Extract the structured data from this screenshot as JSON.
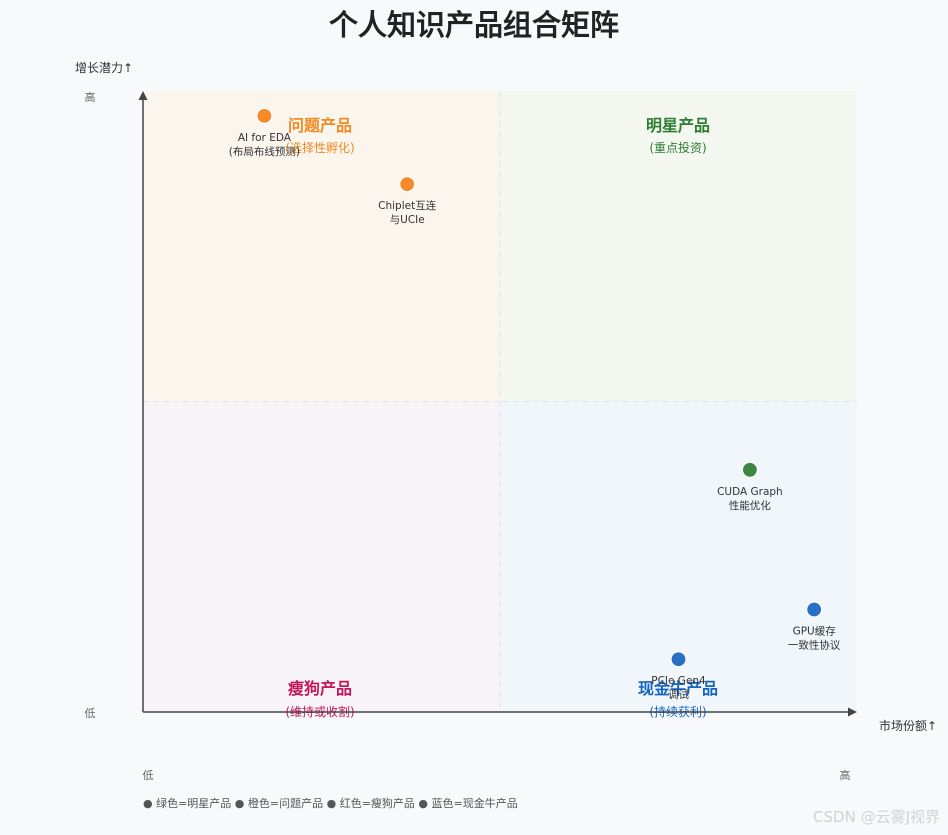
{
  "chart_data": {
    "type": "scatter",
    "title": "个人知识产品组合矩阵",
    "ylabel": "增长潜力↑",
    "xlabel": "市场份额↑",
    "y_ticks": {
      "high": "高",
      "low": "低"
    },
    "x_ticks": {
      "low": "低",
      "high": "高"
    },
    "xlim": [
      0,
      1
    ],
    "ylim": [
      0,
      1
    ],
    "grid": "dashed quadrant dividers",
    "quadrants": [
      {
        "id": "question",
        "title": "问题产品",
        "subtitle": "(选择性孵化)",
        "color": "#f28a22",
        "fill": "#faf6ee"
      },
      {
        "id": "star",
        "title": "明星产品",
        "subtitle": "(重点投资)",
        "color": "#2e7d32",
        "fill": "#f3f7f0"
      },
      {
        "id": "dog",
        "title": "瘦狗产品",
        "subtitle": "(维持或收割)",
        "color": "#c2185b",
        "fill": "#f8f3f7"
      },
      {
        "id": "cash",
        "title": "现金牛产品",
        "subtitle": "(持续获利)",
        "color": "#1565c0",
        "fill": "#f1f6fa"
      }
    ],
    "points": [
      {
        "label1": "AI for EDA",
        "label2": "(布局布线预测)",
        "x": 0.17,
        "y": 0.96,
        "color": "#f57f17"
      },
      {
        "label1": "Chiplet互连",
        "label2": "与UCIe",
        "x": 0.37,
        "y": 0.85,
        "color": "#f57f17"
      },
      {
        "label1": "CUDA Graph",
        "label2": "性能优化",
        "x": 0.85,
        "y": 0.39,
        "color": "#2e7d32"
      },
      {
        "label1": "GPU缓存",
        "label2": "一致性协议",
        "x": 0.94,
        "y": 0.165,
        "color": "#1565c0"
      },
      {
        "label1": "PCIe Gen4",
        "label2": "调试",
        "x": 0.75,
        "y": 0.085,
        "color": "#1565c0"
      }
    ]
  },
  "legend_note": "● 绿色=明星产品 ● 橙色=问题产品 ● 红色=瘦狗产品 ● 蓝色=现金牛产品",
  "watermark": "CSDN @云雾J视界"
}
